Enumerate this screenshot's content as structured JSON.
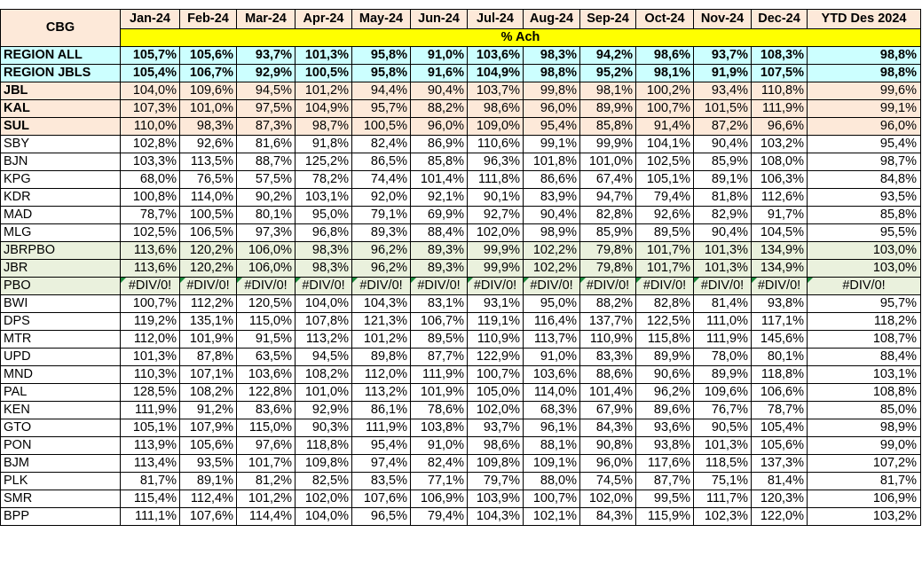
{
  "header": {
    "cbg": "CBG",
    "months": [
      "Jan-24",
      "Feb-24",
      "Mar-24",
      "Apr-24",
      "May-24",
      "Jun-24",
      "Jul-24",
      "Aug-24",
      "Sep-24",
      "Oct-24",
      "Nov-24",
      "Dec-24"
    ],
    "ytd": "YTD Des 2024",
    "ach": "% Ach"
  },
  "colors": {
    "cyan_row": "#ccffff",
    "peach_row": "#fde9d9",
    "green_row": "#eaf1dd",
    "ach_bar": "#ffff00",
    "error_marker": "#1a8a3a"
  },
  "rows": [
    {
      "name": "REGION ALL",
      "style": "cyan",
      "values": [
        "105,7%",
        "105,6%",
        "93,7%",
        "101,3%",
        "95,8%",
        "91,0%",
        "103,6%",
        "98,3%",
        "94,2%",
        "98,6%",
        "93,7%",
        "108,3%"
      ],
      "ytd": "98,8%"
    },
    {
      "name": "REGION JBLS",
      "style": "cyan",
      "values": [
        "105,4%",
        "106,7%",
        "92,9%",
        "100,5%",
        "95,8%",
        "91,6%",
        "104,9%",
        "98,8%",
        "95,2%",
        "98,1%",
        "91,9%",
        "107,5%"
      ],
      "ytd": "98,8%"
    },
    {
      "name": "JBL",
      "style": "peach",
      "values": [
        "104,0%",
        "109,6%",
        "94,5%",
        "101,2%",
        "94,4%",
        "90,4%",
        "103,7%",
        "99,8%",
        "98,1%",
        "100,2%",
        "93,4%",
        "110,8%"
      ],
      "ytd": "99,6%"
    },
    {
      "name": "KAL",
      "style": "peach",
      "values": [
        "107,3%",
        "101,0%",
        "97,5%",
        "104,9%",
        "95,7%",
        "88,2%",
        "98,6%",
        "96,0%",
        "89,9%",
        "100,7%",
        "101,5%",
        "111,9%"
      ],
      "ytd": "99,1%"
    },
    {
      "name": "SUL",
      "style": "peach",
      "values": [
        "110,0%",
        "98,3%",
        "87,3%",
        "98,7%",
        "100,5%",
        "96,0%",
        "109,0%",
        "95,4%",
        "85,8%",
        "91,4%",
        "87,2%",
        "96,6%"
      ],
      "ytd": "96,0%"
    },
    {
      "name": "SBY",
      "style": "white",
      "values": [
        "102,8%",
        "92,6%",
        "81,6%",
        "91,8%",
        "82,4%",
        "86,9%",
        "110,6%",
        "99,1%",
        "99,9%",
        "104,1%",
        "90,4%",
        "103,2%"
      ],
      "ytd": "95,4%"
    },
    {
      "name": "BJN",
      "style": "white",
      "values": [
        "103,3%",
        "113,5%",
        "88,7%",
        "125,2%",
        "86,5%",
        "85,8%",
        "96,3%",
        "101,8%",
        "101,0%",
        "102,5%",
        "85,9%",
        "108,0%"
      ],
      "ytd": "98,7%"
    },
    {
      "name": "KPG",
      "style": "white",
      "values": [
        "68,0%",
        "76,5%",
        "57,5%",
        "78,2%",
        "74,4%",
        "101,4%",
        "111,8%",
        "86,6%",
        "67,4%",
        "105,1%",
        "89,1%",
        "106,3%"
      ],
      "ytd": "84,8%"
    },
    {
      "name": "KDR",
      "style": "white",
      "values": [
        "100,8%",
        "114,0%",
        "90,2%",
        "103,1%",
        "92,0%",
        "92,1%",
        "90,1%",
        "83,9%",
        "94,7%",
        "79,4%",
        "81,8%",
        "112,6%"
      ],
      "ytd": "93,5%"
    },
    {
      "name": "MAD",
      "style": "white",
      "values": [
        "78,7%",
        "100,5%",
        "80,1%",
        "95,0%",
        "79,1%",
        "69,9%",
        "92,7%",
        "90,4%",
        "82,8%",
        "92,6%",
        "82,9%",
        "91,7%"
      ],
      "ytd": "85,8%"
    },
    {
      "name": "MLG",
      "style": "white",
      "values": [
        "102,5%",
        "106,5%",
        "97,3%",
        "96,8%",
        "89,3%",
        "88,4%",
        "102,0%",
        "98,9%",
        "85,9%",
        "89,5%",
        "90,4%",
        "104,5%"
      ],
      "ytd": "95,5%"
    },
    {
      "name": "JBRPBO",
      "style": "green",
      "values": [
        "113,6%",
        "120,2%",
        "106,0%",
        "98,3%",
        "96,2%",
        "89,3%",
        "99,9%",
        "102,2%",
        "79,8%",
        "101,7%",
        "101,3%",
        "134,9%"
      ],
      "ytd": "103,0%"
    },
    {
      "name": "JBR",
      "style": "green",
      "values": [
        "113,6%",
        "120,2%",
        "106,0%",
        "98,3%",
        "96,2%",
        "89,3%",
        "99,9%",
        "102,2%",
        "79,8%",
        "101,7%",
        "101,3%",
        "134,9%"
      ],
      "ytd": "103,0%"
    },
    {
      "name": "PBO",
      "style": "green",
      "error": true,
      "values": [
        "#DIV/0!",
        "#DIV/0!",
        "#DIV/0!",
        "#DIV/0!",
        "#DIV/0!",
        "#DIV/0!",
        "#DIV/0!",
        "#DIV/0!",
        "#DIV/0!",
        "#DIV/0!",
        "#DIV/0!",
        "#DIV/0!"
      ],
      "ytd": "#DIV/0!"
    },
    {
      "name": "BWI",
      "style": "white",
      "values": [
        "100,7%",
        "112,2%",
        "120,5%",
        "104,0%",
        "104,3%",
        "83,1%",
        "93,1%",
        "95,0%",
        "88,2%",
        "82,8%",
        "81,4%",
        "93,8%"
      ],
      "ytd": "95,7%"
    },
    {
      "name": "DPS",
      "style": "white",
      "values": [
        "119,2%",
        "135,1%",
        "115,0%",
        "107,8%",
        "121,3%",
        "106,7%",
        "119,1%",
        "116,4%",
        "137,7%",
        "122,5%",
        "111,0%",
        "117,1%"
      ],
      "ytd": "118,2%"
    },
    {
      "name": "MTR",
      "style": "white",
      "values": [
        "112,0%",
        "101,9%",
        "91,5%",
        "113,2%",
        "101,2%",
        "89,5%",
        "110,9%",
        "113,7%",
        "110,9%",
        "115,8%",
        "111,9%",
        "145,6%"
      ],
      "ytd": "108,7%"
    },
    {
      "name": "UPD",
      "style": "white",
      "values": [
        "101,3%",
        "87,8%",
        "63,5%",
        "94,5%",
        "89,8%",
        "87,7%",
        "122,9%",
        "91,0%",
        "83,3%",
        "89,9%",
        "78,0%",
        "80,1%"
      ],
      "ytd": "88,4%"
    },
    {
      "name": "MND",
      "style": "white",
      "values": [
        "110,3%",
        "107,1%",
        "103,6%",
        "108,2%",
        "112,0%",
        "111,9%",
        "100,7%",
        "103,6%",
        "88,6%",
        "90,6%",
        "89,9%",
        "118,8%"
      ],
      "ytd": "103,1%"
    },
    {
      "name": "PAL",
      "style": "white",
      "values": [
        "128,5%",
        "108,2%",
        "122,8%",
        "101,0%",
        "113,2%",
        "101,9%",
        "105,0%",
        "114,0%",
        "101,4%",
        "96,2%",
        "109,6%",
        "106,6%"
      ],
      "ytd": "108,8%"
    },
    {
      "name": "KEN",
      "style": "white",
      "values": [
        "111,9%",
        "91,2%",
        "83,6%",
        "92,9%",
        "86,1%",
        "78,6%",
        "102,0%",
        "68,3%",
        "67,9%",
        "89,6%",
        "76,7%",
        "78,7%"
      ],
      "ytd": "85,0%"
    },
    {
      "name": "GTO",
      "style": "white",
      "values": [
        "105,1%",
        "107,9%",
        "115,0%",
        "90,3%",
        "111,9%",
        "103,8%",
        "93,7%",
        "96,1%",
        "84,3%",
        "93,6%",
        "90,5%",
        "105,4%"
      ],
      "ytd": "98,9%"
    },
    {
      "name": "PON",
      "style": "white",
      "values": [
        "113,9%",
        "105,6%",
        "97,6%",
        "118,8%",
        "95,4%",
        "91,0%",
        "98,6%",
        "88,1%",
        "90,8%",
        "93,8%",
        "101,3%",
        "105,6%"
      ],
      "ytd": "99,0%"
    },
    {
      "name": "BJM",
      "style": "white",
      "values": [
        "113,4%",
        "93,5%",
        "101,7%",
        "109,8%",
        "97,4%",
        "82,4%",
        "109,8%",
        "109,1%",
        "96,0%",
        "117,6%",
        "118,5%",
        "137,3%"
      ],
      "ytd": "107,2%"
    },
    {
      "name": "PLK",
      "style": "white",
      "values": [
        "81,7%",
        "89,1%",
        "81,2%",
        "82,5%",
        "83,5%",
        "77,1%",
        "79,7%",
        "88,0%",
        "74,5%",
        "87,7%",
        "75,1%",
        "81,4%"
      ],
      "ytd": "81,7%"
    },
    {
      "name": "SMR",
      "style": "white",
      "values": [
        "115,4%",
        "112,4%",
        "101,2%",
        "102,0%",
        "107,6%",
        "106,9%",
        "103,9%",
        "100,7%",
        "102,0%",
        "99,5%",
        "111,7%",
        "120,3%"
      ],
      "ytd": "106,9%"
    },
    {
      "name": "BPP",
      "style": "white",
      "values": [
        "111,1%",
        "107,6%",
        "114,4%",
        "104,0%",
        "96,5%",
        "79,4%",
        "104,3%",
        "102,1%",
        "84,3%",
        "115,9%",
        "102,3%",
        "122,0%"
      ],
      "ytd": "103,2%"
    }
  ]
}
